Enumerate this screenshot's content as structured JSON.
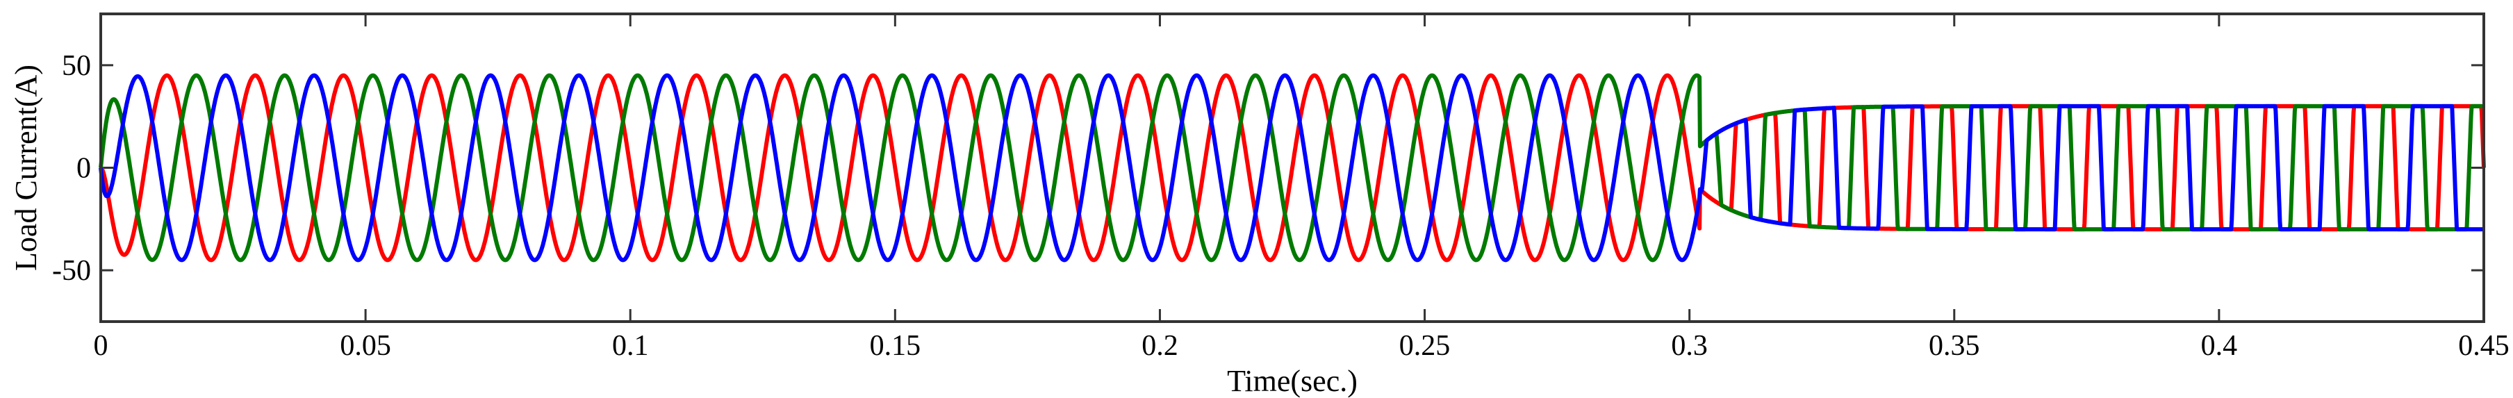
{
  "chart_data": {
    "type": "line",
    "title": "",
    "xlabel": "Time(sec.)",
    "ylabel": "Load Current(A)",
    "xlim": [
      0,
      0.45
    ],
    "ylim": [
      -75,
      75
    ],
    "grid": false,
    "legend": "none",
    "xticks": [
      0,
      0.05,
      0.1,
      0.15,
      0.2,
      0.25,
      0.3,
      0.35,
      0.4,
      0.45
    ],
    "xtick_labels": [
      "0",
      "0.05",
      "0.1",
      "0.15",
      "0.2",
      "0.25",
      "0.3",
      "0.35",
      "0.4",
      "0.45"
    ],
    "yticks": [
      -50,
      0,
      50
    ],
    "ytick_labels": [
      "-50",
      "0",
      "50"
    ],
    "frequency_hz": 60,
    "regimes": [
      {
        "from": 0,
        "to": 0.302,
        "shape": "sinusoidal",
        "amplitude": 45
      },
      {
        "from": 0.302,
        "to": 0.45,
        "shape": "quasi-square",
        "amplitude": 30
      }
    ],
    "series": [
      {
        "color": "#ff0000",
        "phase_deg": 0
      },
      {
        "color": "#007a00",
        "phase_deg": 120
      },
      {
        "color": "#0000ff",
        "phase_deg": -120
      }
    ]
  }
}
